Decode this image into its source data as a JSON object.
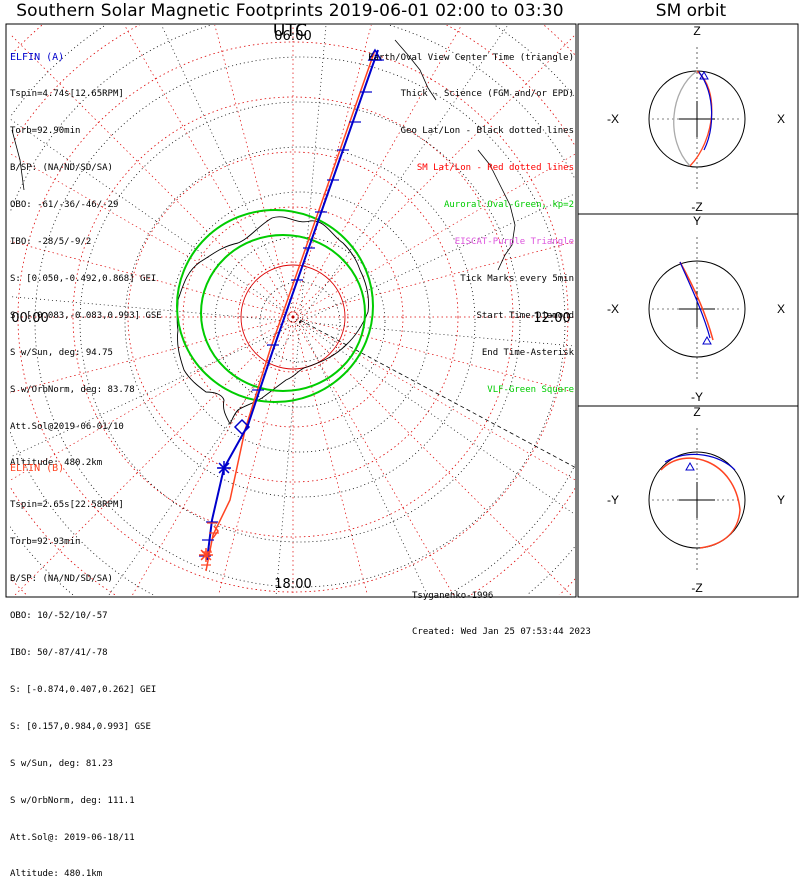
{
  "title": "Southern Solar Magnetic Footprints 2019-06-01 02:00 to 03:30 UTC",
  "orbit_title": "SM orbit",
  "colors": {
    "elfin_a": "#0000cc",
    "elfin_b": "#ff4422",
    "oval": "#00cc00",
    "sm_grid": "#dd0000",
    "geo_grid": "#000000",
    "eiscat": "#cc44cc"
  },
  "polar_labels": {
    "top": "06:00",
    "left": "00:00",
    "right": "12:00",
    "bottom": "18:00"
  },
  "elfin_a": {
    "name": "ELFIN (A)",
    "lines": [
      "Tspin=4.74s[12.65RPM]",
      "Torb=92.90min",
      "B/SP: (NA/ND/SD/SA)",
      "OBO: -61/-36/-46/-29",
      "IBO: -28/5/-9/2",
      "S: [0.050,-0.492,0.868] GEI",
      "S: [-0.083,-0.083,0.993] GSE",
      "S w/Sun, deg: 94.75",
      "S w/OrbNorm, deg: 83.78",
      "Att.Sol@2019-06-01/10",
      "Altitude: 480.2km"
    ]
  },
  "elfin_b": {
    "name": "ELFIN (B)",
    "lines": [
      "Tspin=2.65s[22.58RPM]",
      "Torb=92.93min",
      "B/SP: (NA/ND/SD/SA)",
      "OBO: 10/-52/10/-57",
      "IBO: 50/-87/41/-78",
      "S: [-0.874,0.407,0.262] GEI",
      "S: [0.157,0.984,0.993] GSE",
      "S w/Sun, deg: 81.23",
      "S w/OrbNorm, deg: 111.1",
      "Att.Sol@: 2019-06-18/11",
      "Altitude: 480.1km"
    ]
  },
  "legend": [
    {
      "text": "Earth/Oval View Center Time (triangle)",
      "color": "#000000"
    },
    {
      "text": "Thick - Science (FGM and/or EPD)",
      "color": "#000000"
    },
    {
      "text": "Geo Lat/Lon - Black dotted lines",
      "color": "#000000"
    },
    {
      "text": "SM Lat/Lon - Red dotted lines",
      "color": "#ff0000"
    },
    {
      "text": "Auroral Oval-Green, kp=2",
      "color": "#00cc00"
    },
    {
      "text": "EISCAT-Purple Triangle",
      "color": "#dd55dd"
    },
    {
      "text": "Tick Marks every 5min",
      "color": "#000000"
    },
    {
      "text": "Start Time-Diamond",
      "color": "#000000"
    },
    {
      "text": "End Time-Asterisk",
      "color": "#000000"
    },
    {
      "text": "VLF-Green Square",
      "color": "#00cc00"
    }
  ],
  "footer": {
    "credit": "Tsyganenko-1996",
    "created": "Created: Wed Jan 25 07:53:44 2023"
  },
  "panels": [
    {
      "top": "Z",
      "bottom": "-Z",
      "left": "-X",
      "right": "X"
    },
    {
      "top": "Y",
      "bottom": "-Y",
      "left": "-X",
      "right": "X"
    },
    {
      "top": "Z",
      "bottom": "-Z",
      "left": "-Y",
      "right": "Y"
    }
  ],
  "chart_data": {
    "type": "polar-map",
    "hemisphere": "south",
    "time_range": [
      "2019-06-01 02:00",
      "2019-06-01 03:30"
    ],
    "mlt_labels": [
      "00:00",
      "06:00",
      "12:00",
      "18:00"
    ],
    "series": [
      {
        "name": "ELFIN (A)",
        "color": "#0000cc"
      },
      {
        "name": "ELFIN (B)",
        "color": "#ff4422"
      }
    ]
  }
}
